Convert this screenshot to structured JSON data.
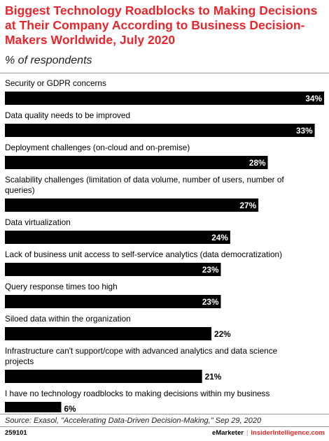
{
  "title": "Biggest Technology Roadblocks to Making Decisions at Their Company According to Business Decision-Makers Worldwide, July 2020",
  "subtitle": "% of respondents",
  "colors": {
    "title": "#e8262b",
    "bar": "#000000",
    "value_inside": "#ffffff",
    "value_outside": "#000000"
  },
  "chart_data": {
    "type": "bar",
    "orientation": "horizontal",
    "unit": "%",
    "categories": [
      "Security or GDPR concerns",
      "Data quality needs to be improved",
      "Deployment challenges (on-cloud and on-premise)",
      "Scalability challenges (limitation of data volume, number of users, number of queries)",
      "Data virtualization",
      "Lack of business unit access to self-service analytics (data democratization)",
      "Query response times too high",
      "Siloed data within the organization",
      "Infrastructure can't support/cope with advanced analytics and data science projects",
      "I have no technology roadblocks to making decisions within my business"
    ],
    "category_label_lines": [
      [
        "Security or GDPR concerns"
      ],
      [
        "Data quality needs to be improved"
      ],
      [
        "Deployment challenges (on-cloud and on-premise)"
      ],
      [
        "Scalability challenges (limitation of data volume, number of users, number of",
        "queries)"
      ],
      [
        "Data virtualization"
      ],
      [
        "Lack of business unit access to self-service analytics (data democratization)"
      ],
      [
        "Query response times too high"
      ],
      [
        "Siloed data within the organization"
      ],
      [
        "Infrastructure can't support/cope with advanced analytics and data science",
        "projects"
      ],
      [
        "I have no technology roadblocks to making decisions within my business"
      ]
    ],
    "values": [
      34,
      33,
      28,
      27,
      24,
      23,
      23,
      22,
      21,
      6
    ],
    "value_labels": [
      "34%",
      "33%",
      "28%",
      "27%",
      "24%",
      "23%",
      "23%",
      "22%",
      "21%",
      "6%"
    ],
    "xlim": [
      0,
      34
    ]
  },
  "source": "Source: Exasol, \"Accelerating Data-Driven Decision-Making,\" Sep 29, 2020",
  "footer": {
    "id": "259101",
    "brand": "eMarketer",
    "separator": "|",
    "site": "InsiderIntelligence.com"
  }
}
